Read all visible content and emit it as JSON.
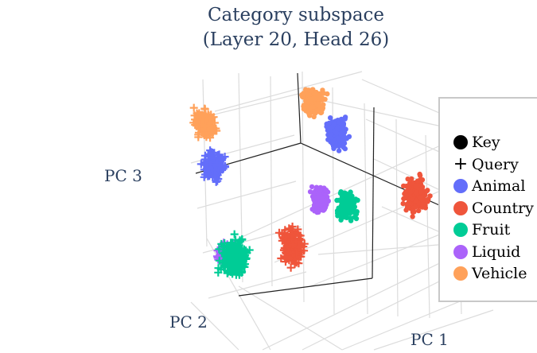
{
  "chart_data": {
    "type": "scatter3d",
    "title_lines": [
      "Category subspace",
      "(Layer 20, Head 26)"
    ],
    "axes": {
      "x": "PC 1",
      "y": "PC 2",
      "z": "PC 3"
    },
    "grid": true,
    "legend_position": "right",
    "legend": [
      {
        "name": "Key",
        "symbol": "circle",
        "color": "#000000"
      },
      {
        "name": "Query",
        "symbol": "cross",
        "color": "#000000"
      },
      {
        "name": "Animal",
        "symbol": "circle",
        "color": "#636efa"
      },
      {
        "name": "Country",
        "symbol": "circle",
        "color": "#ef553b"
      },
      {
        "name": "Fruit",
        "symbol": "circle",
        "color": "#00cc96"
      },
      {
        "name": "Liquid",
        "symbol": "circle",
        "color": "#ab63fa"
      },
      {
        "name": "Vehicle",
        "symbol": "circle",
        "color": "#ffa15a"
      }
    ],
    "clusters": [
      {
        "category": "Vehicle",
        "role": "Query",
        "color": "#ffa15a"
      },
      {
        "category": "Animal",
        "role": "Query",
        "color": "#636efa"
      },
      {
        "category": "Vehicle",
        "role": "Key",
        "color": "#ffa15a"
      },
      {
        "category": "Animal",
        "role": "Key",
        "color": "#636efa"
      },
      {
        "category": "Country",
        "role": "Key",
        "color": "#ef553b"
      },
      {
        "category": "Liquid",
        "role": "Key",
        "color": "#ab63fa"
      },
      {
        "category": "Fruit",
        "role": "Key",
        "color": "#00cc96"
      },
      {
        "category": "Country",
        "role": "Query",
        "color": "#ef553b"
      },
      {
        "category": "Liquid",
        "role": "Query",
        "color": "#ab63fa"
      },
      {
        "category": "Fruit",
        "role": "Query",
        "color": "#00cc96"
      }
    ]
  }
}
